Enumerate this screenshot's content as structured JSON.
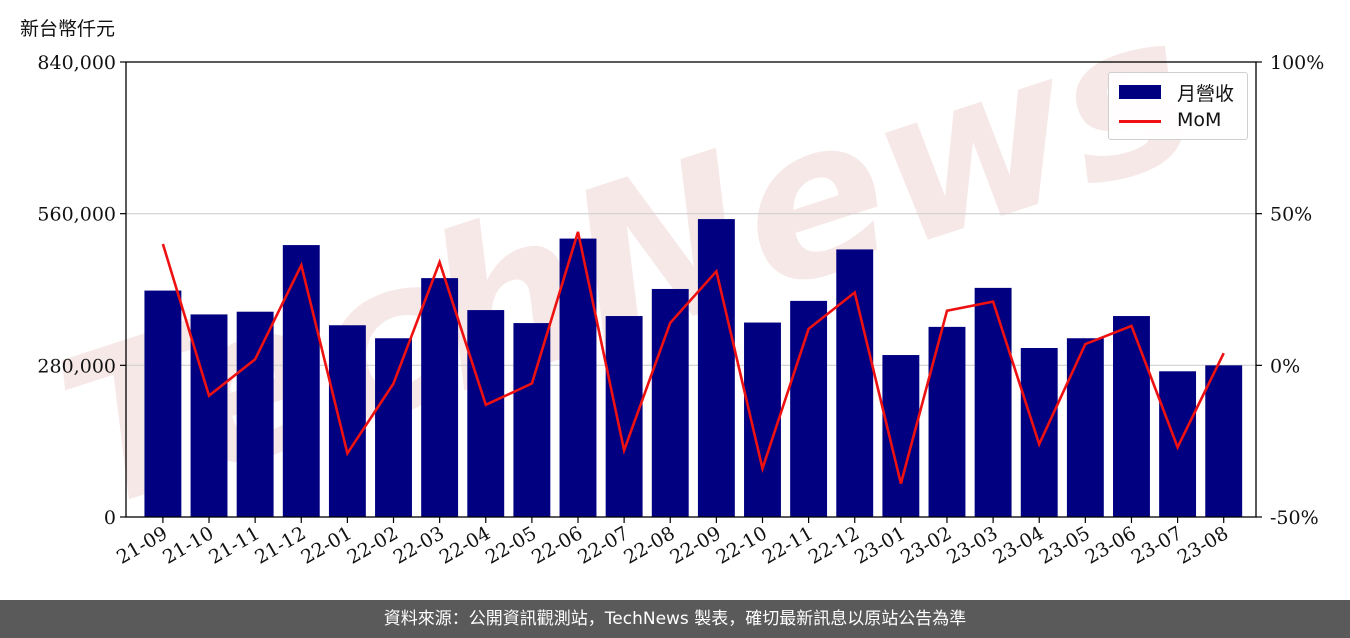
{
  "unit_label": "新台幣仟元",
  "footer_text": "資料來源：公開資訊觀測站，TechNews 製表，確切最新訊息以原站公告為準",
  "watermark_text": "TechNews",
  "colors": {
    "bar": "#000080",
    "line": "#ee1111",
    "grid": "#d0d0d0",
    "footer_bg": "#5a5a5a"
  },
  "chart_data": {
    "type": "bar",
    "categories": [
      "21-09",
      "21-10",
      "21-11",
      "21-12",
      "22-01",
      "22-02",
      "22-03",
      "22-04",
      "22-05",
      "22-06",
      "22-07",
      "22-08",
      "22-09",
      "22-10",
      "22-11",
      "22-12",
      "23-01",
      "23-02",
      "23-03",
      "23-04",
      "23-05",
      "23-06",
      "23-07",
      "23-08"
    ],
    "series": [
      {
        "name": "月營收",
        "type": "bar",
        "axis": "left",
        "values": [
          418000,
          374000,
          379000,
          502000,
          354000,
          330000,
          441000,
          382000,
          358000,
          514000,
          371000,
          421000,
          550000,
          359000,
          399000,
          494000,
          299000,
          351000,
          423000,
          312000,
          330000,
          371000,
          269000,
          280000
        ]
      },
      {
        "name": "MoM",
        "type": "line",
        "axis": "right",
        "values": [
          40,
          -10,
          2,
          33,
          -29,
          -6,
          34,
          -13,
          -6,
          44,
          -28,
          14,
          31,
          -34,
          12,
          24,
          -39,
          18,
          21,
          -26,
          7,
          13,
          -27,
          4
        ]
      }
    ],
    "left_axis": {
      "ylim": [
        0,
        840000
      ],
      "ticks": [
        "0",
        "280,000",
        "560,000",
        "840,000"
      ],
      "tick_values": [
        0,
        280000,
        560000,
        840000
      ]
    },
    "right_axis": {
      "ylim": [
        -50,
        100
      ],
      "ticks": [
        "-50%",
        "0%",
        "50%",
        "100%"
      ],
      "tick_values": [
        -50,
        0,
        50,
        100
      ]
    },
    "grid": "horizontal",
    "legend_position": "top-right",
    "legend": [
      {
        "label": "月營收"
      },
      {
        "label": "MoM"
      }
    ]
  }
}
